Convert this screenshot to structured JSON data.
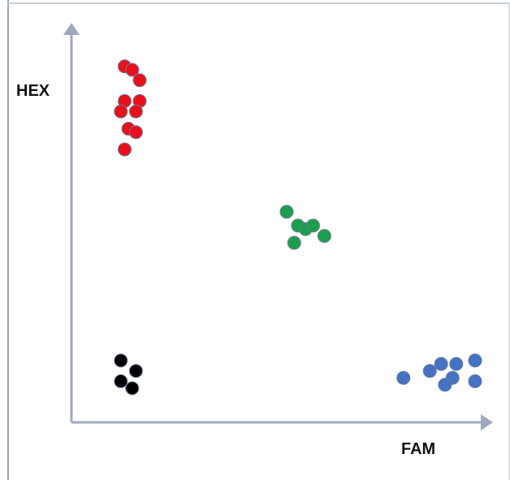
{
  "chart_data": {
    "type": "scatter",
    "title": "",
    "xlabel": "FAM",
    "ylabel": "HEX",
    "xlim": [
      0,
      100
    ],
    "ylim": [
      0,
      100
    ],
    "grid": false,
    "legend": "none",
    "series": [
      {
        "color": "#e8101a",
        "points": [
          [
            7,
            97
          ],
          [
            9,
            96
          ],
          [
            11,
            93
          ],
          [
            7,
            87
          ],
          [
            11,
            87
          ],
          [
            6,
            84
          ],
          [
            10,
            84
          ],
          [
            8,
            79
          ],
          [
            10,
            78
          ],
          [
            7,
            73
          ]
        ]
      },
      {
        "color": "#1aa04a",
        "points": [
          [
            50,
            55
          ],
          [
            53,
            51
          ],
          [
            55,
            50
          ],
          [
            57,
            51
          ],
          [
            60,
            48
          ],
          [
            52,
            46
          ]
        ]
      },
      {
        "color": "#000000",
        "points": [
          [
            6,
            12
          ],
          [
            10,
            9
          ],
          [
            6,
            6
          ],
          [
            9,
            4
          ]
        ]
      },
      {
        "color": "#4472c4",
        "points": [
          [
            81,
            7
          ],
          [
            88,
            9
          ],
          [
            91,
            11
          ],
          [
            95,
            11
          ],
          [
            100,
            12
          ],
          [
            94,
            7
          ],
          [
            100,
            6
          ],
          [
            92,
            5
          ]
        ]
      }
    ]
  },
  "colors": {
    "axis": "#9fa8bd",
    "marker_edge": "#6b7a99"
  }
}
